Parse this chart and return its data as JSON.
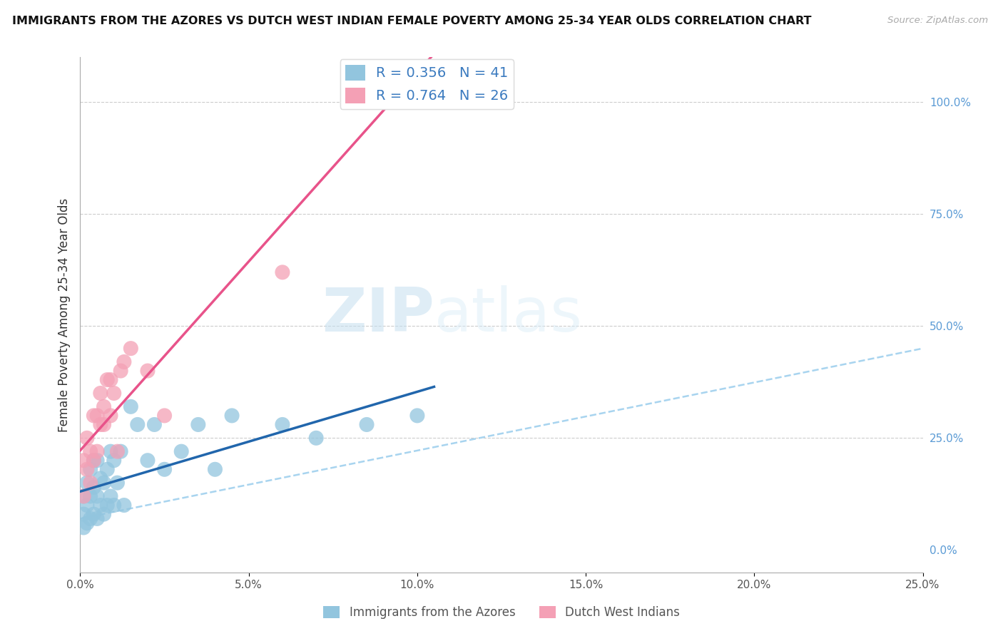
{
  "title": "IMMIGRANTS FROM THE AZORES VS DUTCH WEST INDIAN FEMALE POVERTY AMONG 25-34 YEAR OLDS CORRELATION CHART",
  "source": "Source: ZipAtlas.com",
  "ylabel": "Female Poverty Among 25-34 Year Olds",
  "legend1_label": "Immigrants from the Azores",
  "legend2_label": "Dutch West Indians",
  "R1": 0.356,
  "N1": 41,
  "R2": 0.764,
  "N2": 26,
  "color_blue": "#92c5de",
  "color_pink": "#f4a0b5",
  "color_blue_line": "#2166ac",
  "color_pink_line": "#e8538a",
  "color_dashed": "#a8d4ef",
  "xlim": [
    0.0,
    0.25
  ],
  "ylim": [
    -0.05,
    1.1
  ],
  "xtick_vals": [
    0.0,
    0.05,
    0.1,
    0.15,
    0.2,
    0.25
  ],
  "ytick_right_vals": [
    0.0,
    0.25,
    0.5,
    0.75,
    1.0
  ],
  "watermark_text": "ZIPatlas",
  "blue_x": [
    0.001,
    0.001,
    0.001,
    0.002,
    0.002,
    0.002,
    0.003,
    0.003,
    0.003,
    0.004,
    0.004,
    0.004,
    0.005,
    0.005,
    0.005,
    0.006,
    0.006,
    0.007,
    0.007,
    0.008,
    0.008,
    0.009,
    0.009,
    0.01,
    0.01,
    0.011,
    0.012,
    0.013,
    0.015,
    0.017,
    0.02,
    0.022,
    0.025,
    0.03,
    0.035,
    0.04,
    0.045,
    0.06,
    0.07,
    0.085,
    0.1
  ],
  "blue_y": [
    0.05,
    0.08,
    0.12,
    0.06,
    0.1,
    0.15,
    0.07,
    0.12,
    0.18,
    0.08,
    0.14,
    0.2,
    0.07,
    0.12,
    0.2,
    0.1,
    0.16,
    0.08,
    0.15,
    0.1,
    0.18,
    0.12,
    0.22,
    0.1,
    0.2,
    0.15,
    0.22,
    0.1,
    0.32,
    0.28,
    0.2,
    0.28,
    0.18,
    0.22,
    0.28,
    0.18,
    0.3,
    0.28,
    0.25,
    0.28,
    0.3
  ],
  "pink_x": [
    0.001,
    0.001,
    0.002,
    0.002,
    0.003,
    0.003,
    0.004,
    0.004,
    0.005,
    0.005,
    0.006,
    0.006,
    0.007,
    0.007,
    0.008,
    0.009,
    0.009,
    0.01,
    0.011,
    0.012,
    0.013,
    0.015,
    0.02,
    0.025,
    0.06,
    0.085
  ],
  "pink_y": [
    0.12,
    0.2,
    0.18,
    0.25,
    0.15,
    0.22,
    0.2,
    0.3,
    0.22,
    0.3,
    0.28,
    0.35,
    0.28,
    0.32,
    0.38,
    0.3,
    0.38,
    0.35,
    0.22,
    0.4,
    0.42,
    0.45,
    0.4,
    0.3,
    0.62,
    1.0
  ],
  "blue_line_x": [
    0.0,
    0.105
  ],
  "pink_line_x": [
    0.0,
    0.25
  ],
  "dashed_line_x": [
    0.0,
    0.25
  ],
  "dashed_line_y": [
    0.07,
    0.45
  ]
}
